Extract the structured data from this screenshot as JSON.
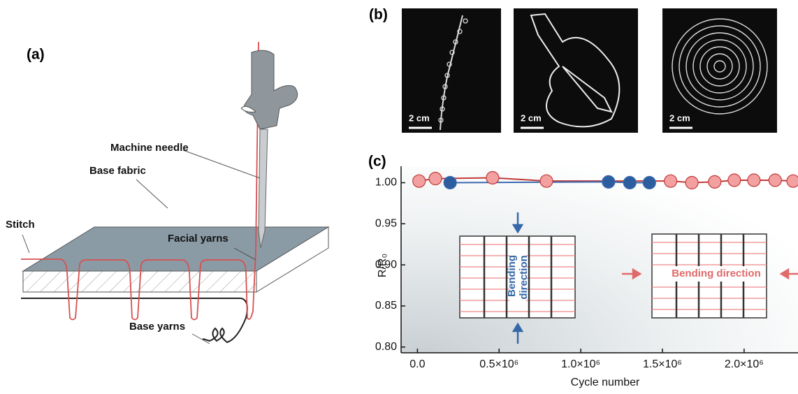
{
  "panel_labels": [
    "(a)",
    "(b)",
    "(c)"
  ],
  "diagram": {
    "labels": [
      "Machine needle",
      "Base fabric",
      "Stitch",
      "Facial yarns",
      "Base yarns"
    ]
  },
  "images": [
    {
      "scale_bar": "2 cm"
    },
    {
      "scale_bar": "2 cm"
    },
    {
      "scale_bar": "2 cm"
    }
  ],
  "chart_data": {
    "type": "scatter",
    "x_label": "Cycle number",
    "y_label": "R/R₀",
    "xlim": [
      -100000,
      2330000
    ],
    "ylim": [
      0.793,
      1.02
    ],
    "xticks": [
      {
        "value": 0,
        "label": "0.0"
      },
      {
        "value": 500000,
        "label": "0.5×10⁶"
      },
      {
        "value": 1000000,
        "label": "1.0×10⁶"
      },
      {
        "value": 1500000,
        "label": "1.5×10⁶"
      },
      {
        "value": 2000000,
        "label": "2.0×10⁶"
      }
    ],
    "yticks": [
      {
        "value": 0.8,
        "label": "0.80"
      },
      {
        "value": 0.85,
        "label": "0.85"
      },
      {
        "value": 0.9,
        "label": "0.90"
      },
      {
        "value": 0.95,
        "label": "0.95"
      },
      {
        "value": 1,
        "label": "1.00"
      }
    ],
    "series": [
      {
        "color": "#f2a0a0",
        "line_color": "#c23a3a",
        "x": [
          10000,
          110000,
          460000,
          790000,
          1550000,
          1680000,
          1820000,
          1940000,
          2060000,
          2190000,
          2300000
        ],
        "values": [
          1.002,
          1.005,
          1.006,
          1.002,
          1.002,
          1.0,
          1.001,
          1.003,
          1.003,
          1.003,
          1.002
        ]
      },
      {
        "color": "#2c5d9e",
        "line_color": "#3a6ab0",
        "x": [
          200000,
          1170000,
          1300000,
          1420000
        ],
        "values": [
          1.0,
          1.001,
          1.0,
          1.0
        ]
      }
    ],
    "inset_labels": [
      "Bending",
      "direction",
      "Bending direction"
    ]
  }
}
